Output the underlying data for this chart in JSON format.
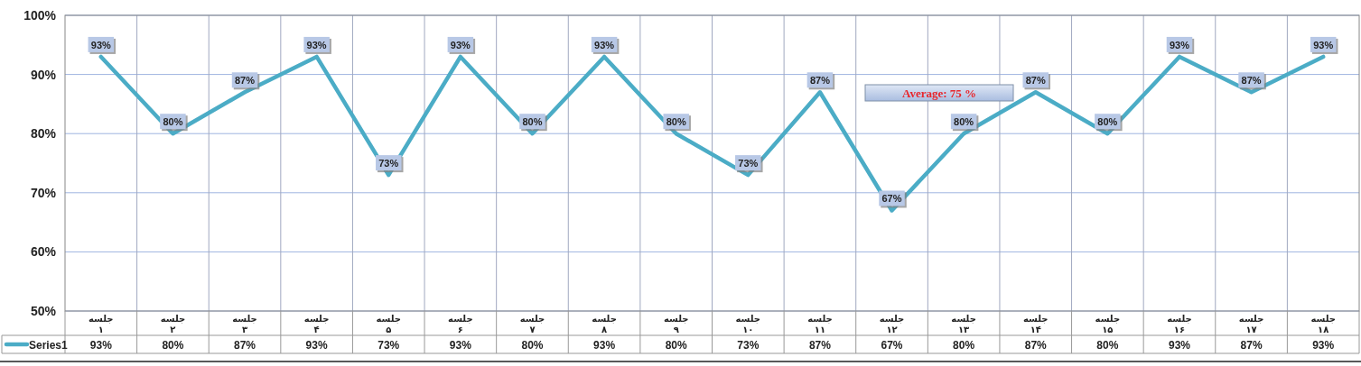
{
  "chart_data": {
    "type": "line",
    "categories": [
      "جلسه\n۱",
      "جلسه\n۲",
      "جلسه\n۳",
      "جلسه\n۴",
      "جلسه\n۵",
      "جلسه\n۶",
      "جلسه\n۷",
      "جلسه\n۸",
      "جلسه\n۹",
      "جلسه\n۱۰",
      "جلسه\n۱۱",
      "جلسه\n۱۲",
      "جلسه\n۱۳",
      "جلسه\n۱۴",
      "جلسه\n۱۵",
      "جلسه\n۱۶",
      "جلسه\n۱۷",
      "جلسه\n۱۸"
    ],
    "series": [
      {
        "name": "Series1",
        "color": "#4bacc6",
        "values": [
          93,
          80,
          87,
          93,
          73,
          93,
          80,
          93,
          80,
          73,
          87,
          67,
          80,
          87,
          80,
          93,
          87,
          93
        ],
        "value_labels": [
          "93%",
          "80%",
          "87%",
          "93%",
          "73%",
          "93%",
          "80%",
          "93%",
          "80%",
          "73%",
          "87%",
          "67%",
          "80%",
          "87%",
          "80%",
          "93%",
          "87%",
          "93%"
        ]
      }
    ],
    "ylim": [
      50,
      100
    ],
    "yticks": [
      {
        "value": 50,
        "label": "50%"
      },
      {
        "value": 60,
        "label": "60%"
      },
      {
        "value": 70,
        "label": "70%"
      },
      {
        "value": 80,
        "label": "80%"
      },
      {
        "value": 90,
        "label": "90%"
      },
      {
        "value": 100,
        "label": "100%"
      }
    ],
    "grid": true,
    "legend": "bottom",
    "annotations": [
      "Average: 75 %"
    ]
  }
}
